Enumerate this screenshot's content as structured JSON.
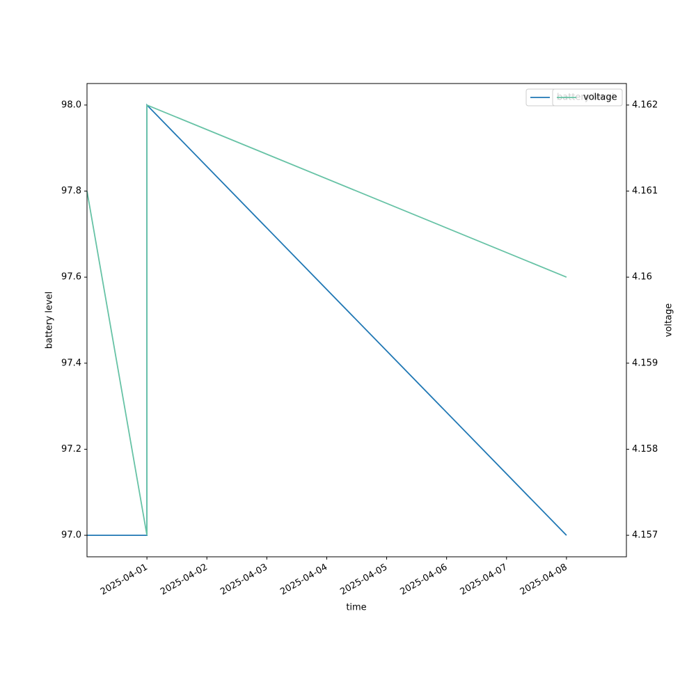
{
  "chart_data": {
    "type": "line",
    "xlabel": "time",
    "ylabel": "battery level",
    "y2label": "voltage",
    "x": [
      "2025-03-31",
      "2025-04-01",
      "2025-04-01",
      "2025-04-08"
    ],
    "series": [
      {
        "name": "battery level",
        "color": "#1f77b4",
        "values": [
          97,
          97,
          98,
          97
        ],
        "axis": "y"
      },
      {
        "name": "voltage",
        "color": "#66c2a5",
        "values": [
          4.161,
          4.157,
          4.162,
          4.16
        ],
        "axis": "y2"
      }
    ],
    "xlim": [
      "2025-03-31",
      "2025-04-09"
    ],
    "xticks": [
      "2025-04-01",
      "2025-04-02",
      "2025-04-03",
      "2025-04-04",
      "2025-04-05",
      "2025-04-06",
      "2025-04-07",
      "2025-04-08"
    ],
    "ylim": [
      96.95,
      98.05
    ],
    "yticks": [
      {
        "value": 97,
        "label": "97.0"
      },
      {
        "value": 97.2,
        "label": "97.2"
      },
      {
        "value": 97.4,
        "label": "97.4"
      },
      {
        "value": 97.6,
        "label": "97.6"
      },
      {
        "value": 97.8,
        "label": "97.8"
      },
      {
        "value": 98,
        "label": "98.0"
      }
    ],
    "y2lim": [
      4.15675,
      4.16225
    ],
    "y2ticks": [
      4.157,
      4.158,
      4.159,
      4.16,
      4.161,
      4.162
    ],
    "legend": "upper right"
  }
}
